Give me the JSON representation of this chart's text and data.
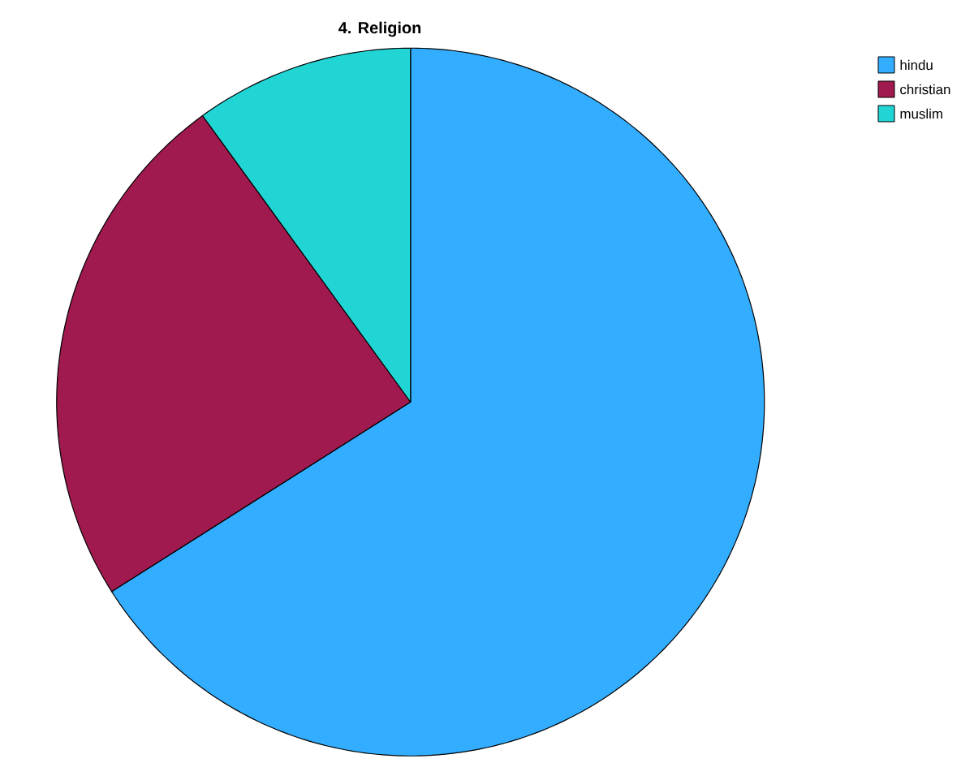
{
  "chart_data": {
    "type": "pie",
    "title": "4. Religion",
    "categories": [
      "hindu",
      "christian",
      "muslim"
    ],
    "values": [
      66,
      24,
      10
    ],
    "colors": [
      "#33adff",
      "#a0194f",
      "#22d5d5"
    ],
    "legend": "top right"
  }
}
